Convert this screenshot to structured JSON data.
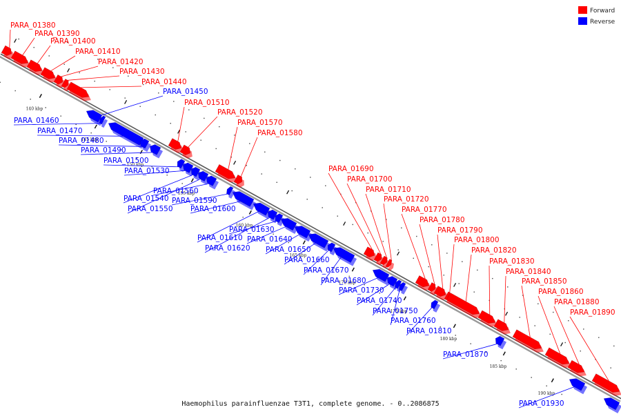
{
  "caption": "Haemophilus parainfluenzae T3T1, complete genome. - 0..2086875",
  "colors": {
    "forward": "#ff0000",
    "reverse": "#0000ff",
    "backbone": "#888888"
  },
  "legend": [
    {
      "label": "Forward",
      "color": "#ff0000"
    },
    {
      "label": "Reverse",
      "color": "#0000ff"
    }
  ],
  "ticks": [
    "140 kbp",
    "145 kbp",
    "150 kbp",
    "155 kbp",
    "160 kbp",
    "165 kbp",
    "170 kbp",
    "175 kbp",
    "180 kbp",
    "185 kbp",
    "190 kbp"
  ],
  "genes": {
    "forward": [
      "PARA_01380",
      "PARA_01390",
      "PARA_01400",
      "PARA_01410",
      "PARA_01420",
      "PARA_01430",
      "PARA_01440",
      "PARA_01510",
      "PARA_01520",
      "PARA_01570",
      "PARA_01580",
      "PARA_01690",
      "PARA_01700",
      "PARA_01710",
      "PARA_01720",
      "PARA_01770",
      "PARA_01780",
      "PARA_01790",
      "PARA_01800",
      "PARA_01820",
      "PARA_01830",
      "PARA_01840",
      "PARA_01850",
      "PARA_01860",
      "PARA_01880",
      "PARA_01890"
    ],
    "reverse": [
      "PARA_01450",
      "PARA_01460",
      "PARA_01470",
      "PARA_01480",
      "PARA_01490",
      "PARA_01500",
      "PARA_01530",
      "PARA_01540",
      "PARA_01550",
      "PARA_01560",
      "PARA_01590",
      "PARA_01600",
      "PARA_01610",
      "PARA_01620",
      "PARA_01630",
      "PARA_01640",
      "PARA_01650",
      "PARA_01660",
      "PARA_01670",
      "PARA_01680",
      "PARA_01730",
      "PARA_01740",
      "PARA_01750",
      "PARA_01760",
      "PARA_01810",
      "PARA_01870",
      "PARA_01930"
    ]
  }
}
